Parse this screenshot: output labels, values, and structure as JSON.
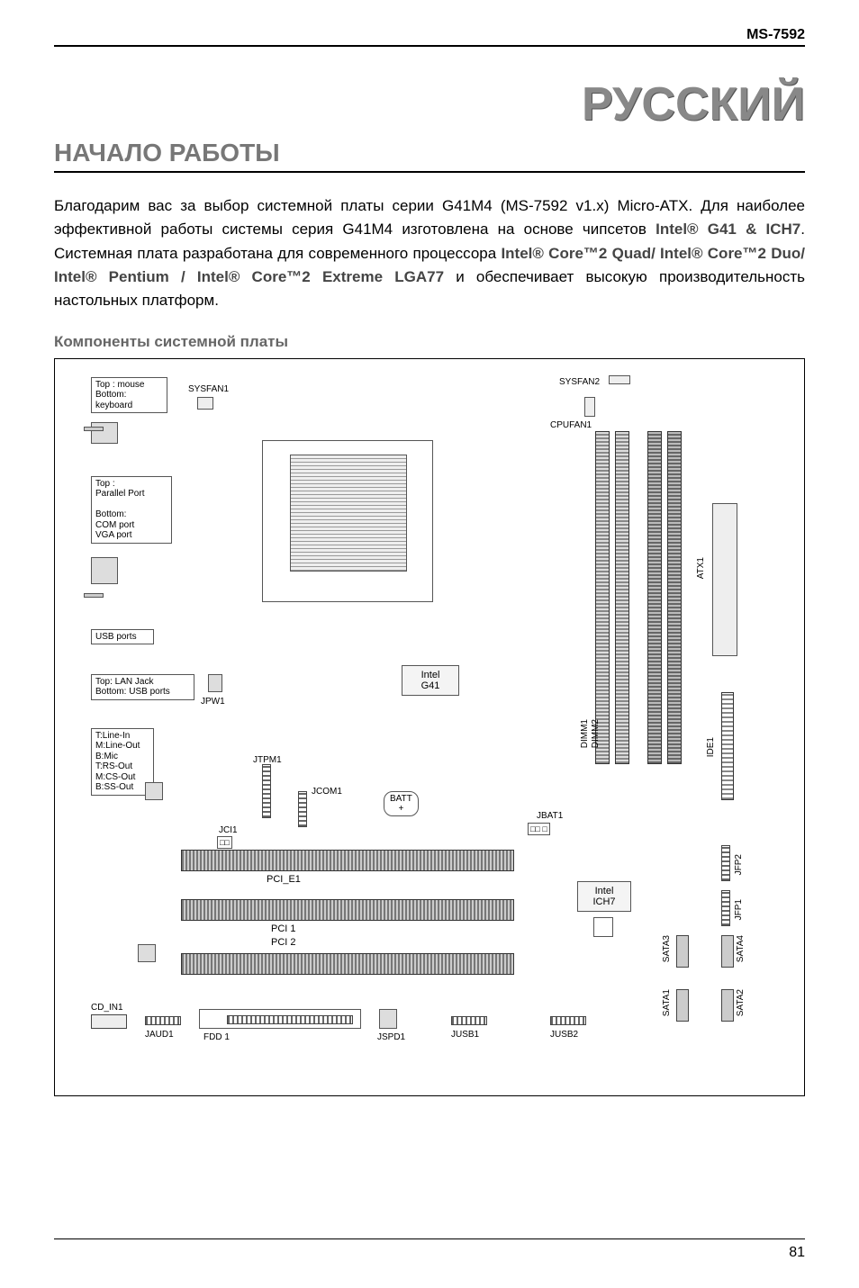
{
  "header": {
    "model": "MS-7592"
  },
  "lang_title": "РУССКИЙ",
  "section_title": "НАЧАЛО РАБОТЫ",
  "intro_html": "Благодарим вас за выбор системной платы серии G41M4 (MS-7592 v1.x) Micro-ATX. Для наиболее эффективной работы системы серия G41M4 изготовлена на основе чипсетов <b>Intel® G41 & ICH7</b>. Системная плата разработана для современного процессора <b>Intel® Core™2 Quad/ Intel® Core™2 Duo/ Intel® Pentium / Intel® Core™2 Extreme LGA77</b> и обеспечивает высокую производительность настольных платформ.",
  "sub_title": "Компоненты системной платы",
  "page_number": "81",
  "board": {
    "io_labels": {
      "ps2": "Top : mouse\nBottom:\nkeyboard",
      "parallel": "Top :\nParallel Port\n\nBottom:\nCOM port\nVGA port",
      "usb": "USB ports",
      "lan": "Top: LAN Jack\nBottom: USB ports",
      "audio": "T:Line-In\nM:Line-Out\nB:Mic\nT:RS-Out\nM:CS-Out\nB:SS-Out"
    },
    "fans": {
      "sysfan1": "SYSFAN1",
      "sysfan2": "SYSFAN2",
      "cpufan1": "CPUFAN1"
    },
    "chips": {
      "nb": "Intel\nG41",
      "sb": "Intel\nICH7"
    },
    "batt": "BATT\n+",
    "headers": {
      "jpw1": "JPW1",
      "jtpm1": "JTPM1",
      "jcom1": "JCOM1",
      "jci1": "JCI1",
      "jbat1": "JBAT1"
    },
    "slots": {
      "dimm1": "DIMM1",
      "dimm2": "DIMM2",
      "atx1": "ATX1",
      "ide1": "IDE1",
      "pci_e1": "PCI_E1",
      "pci1": "PCI 1",
      "pci2": "PCI 2",
      "sata1": "SATA1",
      "sata2": "SATA2",
      "sata3": "SATA3",
      "sata4": "SATA4",
      "jfp1": "JFP1",
      "jfp2": "JFP2"
    },
    "bottom": {
      "cd_in1": "CD_IN1",
      "jaud1": "JAUD1",
      "fdd1": "FDD 1",
      "jspd1": "JSPD1",
      "jusb1": "JUSB1",
      "jusb2": "JUSB2"
    }
  }
}
